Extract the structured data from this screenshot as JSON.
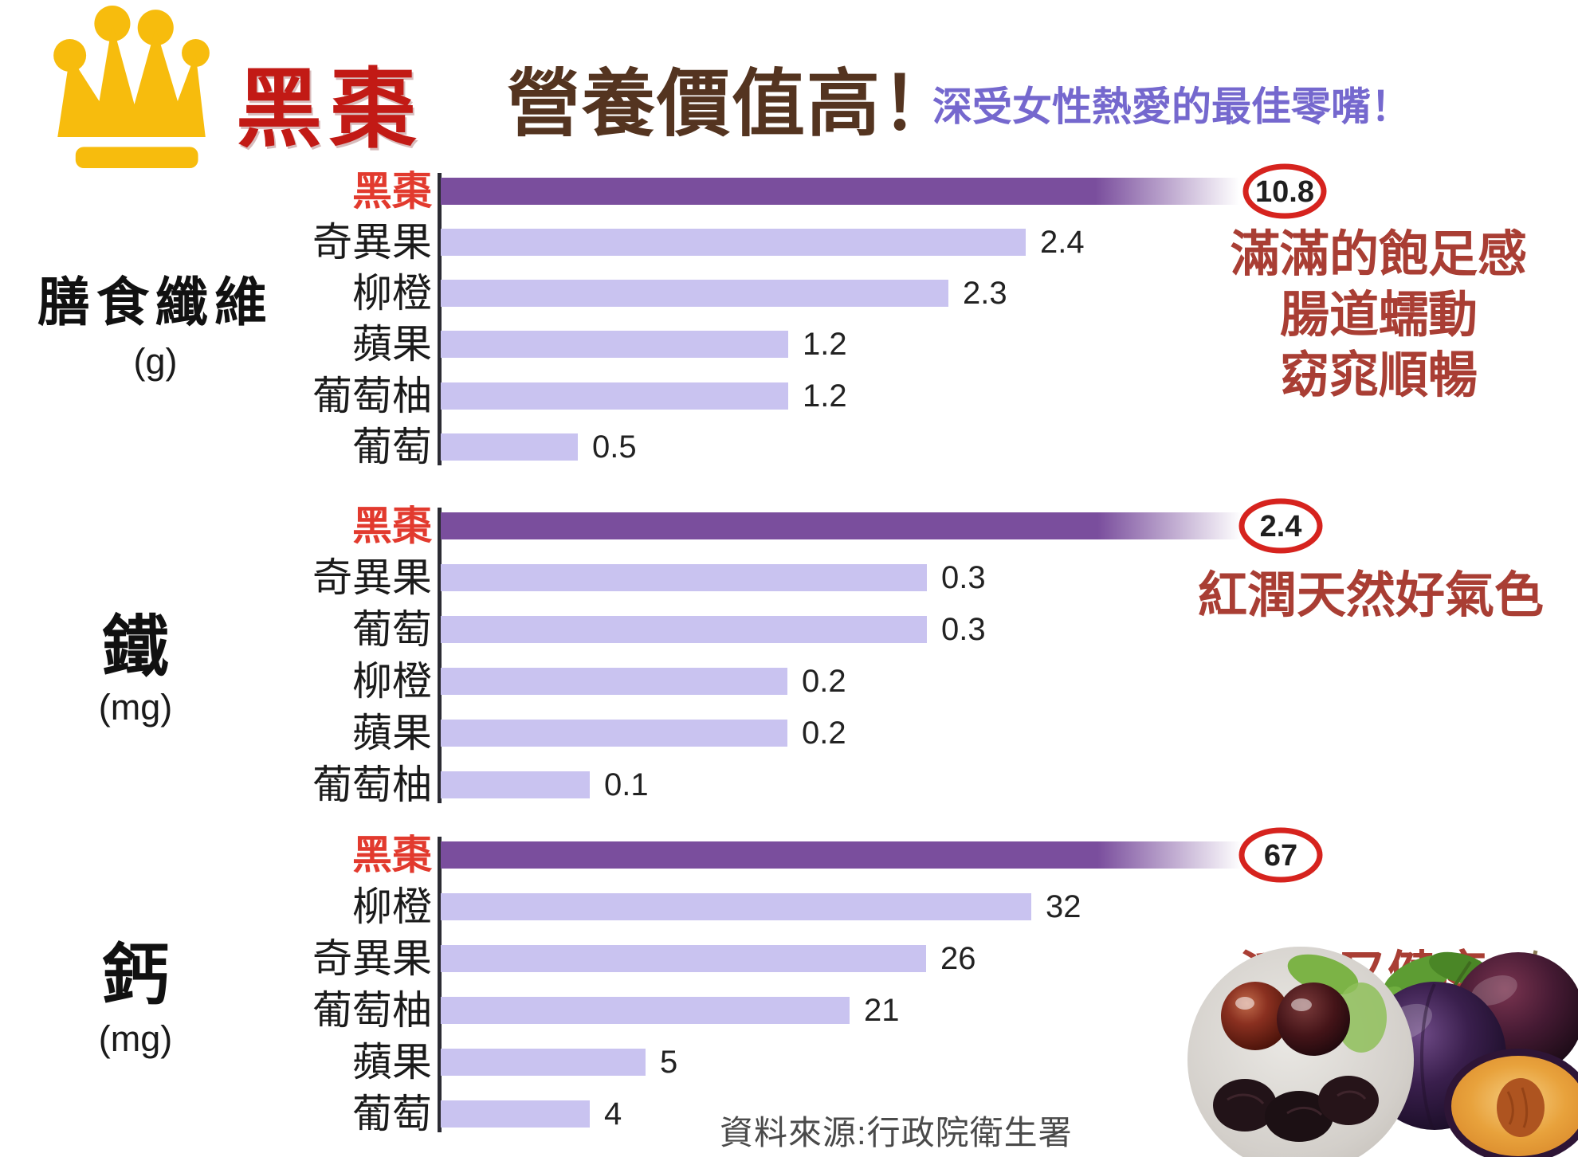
{
  "header": {
    "title": "黑棗",
    "subtitle": "營養價值高！",
    "tagline": "深受女性熱愛的最佳零嘴！"
  },
  "source": "資料來源:行政院衛生署",
  "colors": {
    "bar_highlight": "#7A4E9D",
    "bar_normal": "#C9C3F0",
    "highlight_label_red": "#E23A2E",
    "title_red": "#C21A15",
    "subtitle_brown": "#543420",
    "tagline_purple": "#7568CE",
    "annotation_red": "#A93E34",
    "circle_red": "#D6231E",
    "crown_gold": "#F7BC0D"
  },
  "chart_data": [
    {
      "type": "bar",
      "orientation": "horizontal",
      "title": "膳食纖維",
      "unit": "(g)",
      "categories": [
        "黑棗",
        "奇異果",
        "柳橙",
        "蘋果",
        "葡萄柚",
        "葡萄"
      ],
      "values": [
        10.8,
        2.4,
        2.3,
        1.2,
        1.2,
        0.5
      ],
      "highlight_category": "黑棗",
      "highlight_value_label": "10.8",
      "annotation_lines": [
        "滿滿的飽足感",
        "腸道蠕動",
        "窈窕順暢"
      ],
      "legend": "none",
      "grid": "off"
    },
    {
      "type": "bar",
      "orientation": "horizontal",
      "title": "鐵",
      "unit": "(mg)",
      "categories": [
        "黑棗",
        "奇異果",
        "葡萄",
        "柳橙",
        "蘋果",
        "葡萄柚"
      ],
      "values": [
        2.4,
        0.3,
        0.3,
        0.2,
        0.2,
        0.1
      ],
      "highlight_category": "黑棗",
      "highlight_value_label": "2.4",
      "annotation_lines": [
        "紅潤天然好氣色"
      ],
      "legend": "none",
      "grid": "off"
    },
    {
      "type": "bar",
      "orientation": "horizontal",
      "title": "鈣",
      "unit": "(mg)",
      "categories": [
        "黑棗",
        "柳橙",
        "奇異果",
        "葡萄柚",
        "蘋果",
        "葡萄"
      ],
      "values": [
        67,
        32,
        26,
        21,
        5,
        4
      ],
      "highlight_category": "黑棗",
      "highlight_value_label": "67",
      "annotation_lines": [
        "活力又健康"
      ],
      "legend": "none",
      "grid": "off"
    }
  ]
}
